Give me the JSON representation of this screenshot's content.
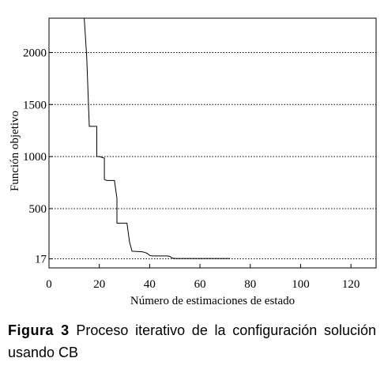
{
  "chart_data": {
    "type": "line",
    "title": "",
    "xlabel": "Número de estimaciones de estado",
    "ylabel": "Función objetivo",
    "xlim": [
      0,
      130
    ],
    "ylim": [
      -70,
      2330
    ],
    "x_ticks": [
      0,
      20,
      40,
      60,
      80,
      100,
      120
    ],
    "x_tick_labels": [
      "0",
      "20",
      "40",
      "60",
      "80",
      "100",
      "120"
    ],
    "y_ticks": [
      17,
      500,
      1000,
      1500,
      2000
    ],
    "y_tick_labels": [
      "17",
      "500",
      "1000",
      "1500",
      "2000"
    ],
    "grid": "horizontal-dotted",
    "series": [
      {
        "name": "",
        "x": [
          14,
          15,
          16,
          19,
          19,
          20,
          22,
          22,
          23,
          26,
          27,
          27,
          28,
          31,
          32,
          33,
          37,
          38,
          39,
          40,
          41,
          47,
          48,
          49,
          50,
          51,
          72
        ],
        "y": [
          2330,
          1950,
          1290,
          1290,
          1000,
          1000,
          985,
          780,
          770,
          770,
          600,
          360,
          360,
          360,
          180,
          90,
          85,
          80,
          70,
          50,
          45,
          45,
          40,
          25,
          20,
          20,
          20
        ]
      }
    ]
  },
  "caption": {
    "label": "Figura 3",
    "text": " Proceso iterativo de la configuración solución usando CB"
  }
}
